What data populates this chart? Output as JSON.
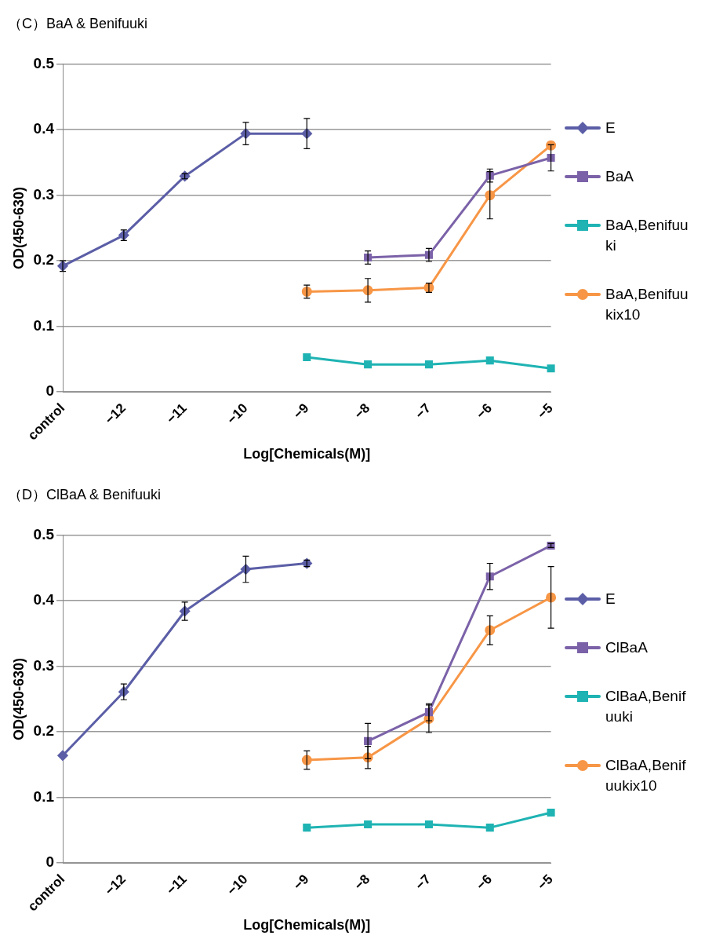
{
  "chart_data": [
    {
      "type": "line",
      "title": "（C）BaA & Benifuuki",
      "xlabel": "Log[Chemicals(M)]",
      "ylabel": "OD(450-630)",
      "categories": [
        "control",
        "−12",
        "−11",
        "−10",
        "−9",
        "−8",
        "−7",
        "−6",
        "−5"
      ],
      "ylim": [
        0,
        0.5
      ],
      "yticks": [
        0,
        0.1,
        0.2,
        0.3,
        0.4,
        0.5
      ],
      "grid": "y",
      "legend": "right",
      "series": [
        {
          "name": "E",
          "color": "#5b5ea6",
          "marker": "diamond",
          "values": [
            0.192,
            0.239,
            0.329,
            0.394,
            0.394,
            null,
            null,
            null,
            null
          ],
          "errors": [
            0.008,
            0.008,
            0.004,
            0.017,
            0.023,
            null,
            null,
            null,
            null
          ]
        },
        {
          "name": "BaA",
          "color": "#7b62a8",
          "marker": "square",
          "values": [
            null,
            null,
            null,
            null,
            null,
            0.205,
            0.209,
            0.33,
            0.357
          ],
          "errors": [
            null,
            null,
            null,
            null,
            null,
            0.01,
            0.01,
            0.01,
            0.02
          ]
        },
        {
          "name": "BaA,Benifuuki",
          "color": "#1fb3b3",
          "marker": "square",
          "values": [
            null,
            null,
            null,
            null,
            0.053,
            0.042,
            0.042,
            0.048,
            0.036
          ]
        },
        {
          "name": "BaA,Benifuukix10",
          "color": "#f79646",
          "marker": "circle",
          "values": [
            null,
            null,
            null,
            null,
            0.153,
            0.155,
            0.159,
            0.3,
            0.376
          ],
          "errors": [
            null,
            null,
            null,
            null,
            0.01,
            0.018,
            0.007,
            0.036,
            null
          ]
        }
      ]
    },
    {
      "type": "line",
      "title": "（D）ClBaA & Benifuuki",
      "xlabel": "Log[Chemicals(M)]",
      "ylabel": "OD(450-630)",
      "categories": [
        "control",
        "−12",
        "−11",
        "−10",
        "−9",
        "−8",
        "−7",
        "−6",
        "−5"
      ],
      "ylim": [
        0,
        0.5
      ],
      "yticks": [
        0,
        0.1,
        0.2,
        0.3,
        0.4,
        0.5
      ],
      "grid": "y",
      "legend": "right",
      "series": [
        {
          "name": "E",
          "color": "#5b5ea6",
          "marker": "diamond",
          "values": [
            0.164,
            0.261,
            0.384,
            0.448,
            0.457,
            null,
            null,
            null,
            null
          ],
          "errors": [
            null,
            0.012,
            0.014,
            0.02,
            0.005,
            null,
            null,
            null,
            null
          ]
        },
        {
          "name": "ClBaA",
          "color": "#7b62a8",
          "marker": "square",
          "values": [
            null,
            null,
            null,
            null,
            null,
            0.186,
            0.23,
            0.437,
            0.484
          ],
          "errors": [
            null,
            null,
            null,
            null,
            null,
            0.027,
            0.013,
            0.02,
            0.003
          ]
        },
        {
          "name": "ClBaA,Benifuuki",
          "color": "#1fb3b3",
          "marker": "square",
          "values": [
            null,
            null,
            null,
            null,
            0.054,
            0.059,
            0.059,
            0.054,
            0.077
          ]
        },
        {
          "name": "ClBaA,Benifuukix10",
          "color": "#f79646",
          "marker": "circle",
          "values": [
            null,
            null,
            null,
            null,
            0.157,
            0.161,
            0.22,
            0.355,
            0.405
          ],
          "errors": [
            null,
            null,
            null,
            null,
            0.014,
            0.017,
            0.021,
            0.022,
            0.047
          ]
        }
      ]
    }
  ]
}
